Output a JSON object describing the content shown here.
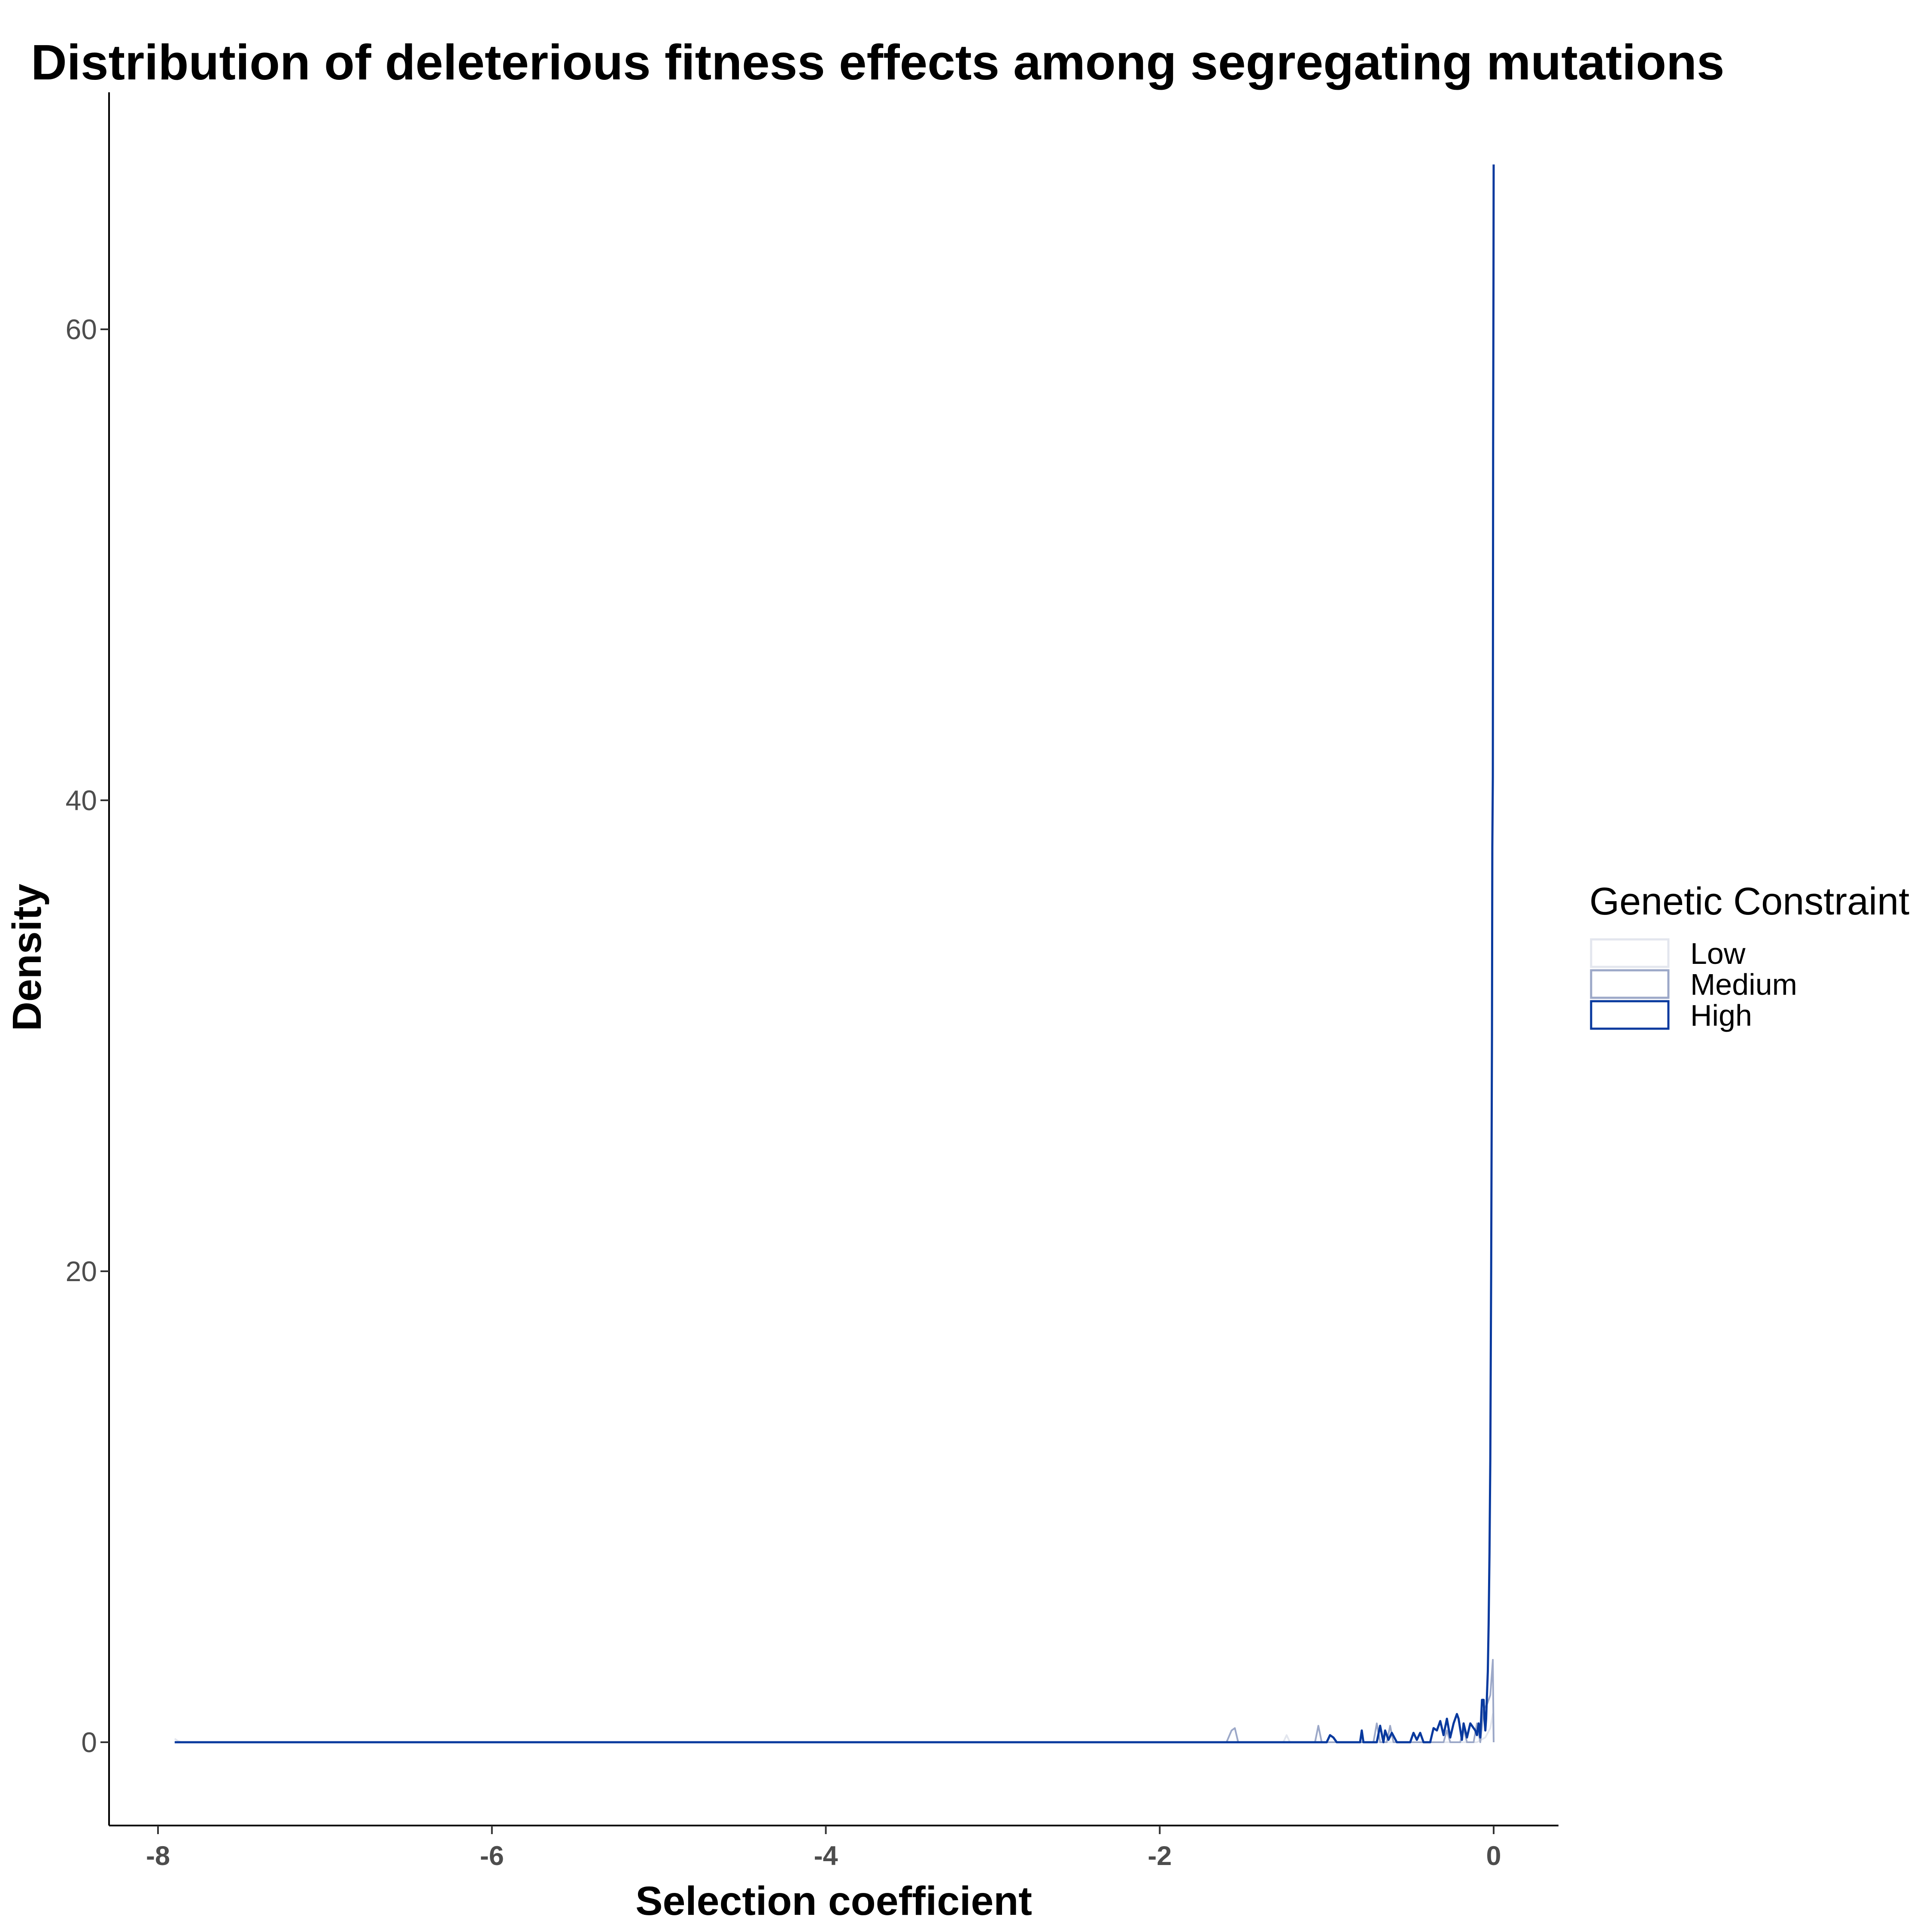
{
  "chart_data": {
    "type": "line",
    "title": "Distribution of deleterious fitness effects among segregating mutations",
    "xlabel": "Selection coefficient",
    "ylabel": "Density",
    "xlim": [
      -8.1,
      0.4
    ],
    "ylim": [
      -3.5,
      70
    ],
    "x_ticks": [
      -8,
      -6,
      -4,
      -2,
      0
    ],
    "x_tick_labels": [
      "-8",
      "-6",
      "-4",
      "-2",
      "0"
    ],
    "y_ticks": [
      0,
      20,
      40,
      60
    ],
    "y_tick_labels": [
      "0",
      "20",
      "40",
      "60"
    ],
    "grid": false,
    "legend": {
      "title": "Genetic Constraint",
      "position": "right"
    },
    "series": [
      {
        "name": "Low",
        "color": "#e3e6ee",
        "x": [
          -7.9,
          -7.88,
          -7.86,
          -1.6,
          -1.26,
          -1.24,
          -1.22,
          -1.2,
          -0.9,
          -0.6,
          -0.3,
          -0.1,
          -0.05,
          -0.02,
          -0.005,
          0.0
        ],
        "y": [
          0.15,
          0.05,
          0,
          0,
          0,
          0.3,
          0,
          0,
          0,
          0,
          0,
          0,
          0.2,
          0.6,
          1.2,
          0
        ]
      },
      {
        "name": "Medium",
        "color": "#9ca8c8",
        "x": [
          -7.9,
          -1.6,
          -1.57,
          -1.55,
          -1.53,
          -1.07,
          -1.05,
          -1.03,
          -0.72,
          -0.7,
          -0.68,
          -0.64,
          -0.62,
          -0.6,
          -0.4,
          -0.3,
          -0.28,
          -0.26,
          -0.2,
          -0.18,
          -0.16,
          -0.12,
          -0.1,
          -0.08,
          -0.06,
          -0.04,
          -0.02,
          -0.005,
          0.0
        ],
        "y": [
          0,
          0,
          0.5,
          0.6,
          0,
          0,
          0.7,
          0,
          0,
          0.8,
          0,
          0,
          0.7,
          0,
          0,
          0,
          0.5,
          0,
          0,
          0.6,
          0,
          0,
          0.8,
          0,
          1.4,
          1.6,
          2.0,
          3.5,
          0
        ]
      },
      {
        "name": "High",
        "color": "#08399e",
        "x": [
          -7.9,
          -1.0,
          -0.98,
          -0.96,
          -0.94,
          -0.8,
          -0.79,
          -0.78,
          -0.7,
          -0.68,
          -0.66,
          -0.65,
          -0.63,
          -0.61,
          -0.58,
          -0.5,
          -0.48,
          -0.46,
          -0.44,
          -0.42,
          -0.38,
          -0.36,
          -0.34,
          -0.32,
          -0.3,
          -0.28,
          -0.26,
          -0.24,
          -0.22,
          -0.21,
          -0.19,
          -0.18,
          -0.16,
          -0.14,
          -0.12,
          -0.11,
          -0.1,
          -0.09,
          -0.08,
          -0.07,
          -0.06,
          -0.055,
          -0.05,
          -0.045,
          -0.04,
          -0.035,
          -0.03,
          -0.025,
          -0.02,
          -0.015,
          -0.01,
          -0.008,
          -0.005,
          -0.003,
          -0.001,
          0.0
        ],
        "y": [
          0,
          0,
          0.3,
          0.2,
          0,
          0,
          0.5,
          0,
          0,
          0.7,
          0,
          0.5,
          0.1,
          0.4,
          0,
          0,
          0.4,
          0.1,
          0.4,
          0,
          0,
          0.6,
          0.5,
          0.9,
          0.3,
          1.0,
          0.2,
          0.8,
          1.2,
          1.0,
          0.1,
          0.8,
          0.2,
          0.8,
          0.6,
          0.5,
          0.3,
          0.8,
          0.2,
          1.8,
          1.8,
          1.0,
          0.5,
          1.0,
          2.0,
          3.0,
          5.0,
          8.0,
          12.0,
          20.0,
          30.0,
          38.0,
          41.0,
          55.0,
          62.0,
          67.0
        ]
      }
    ]
  }
}
